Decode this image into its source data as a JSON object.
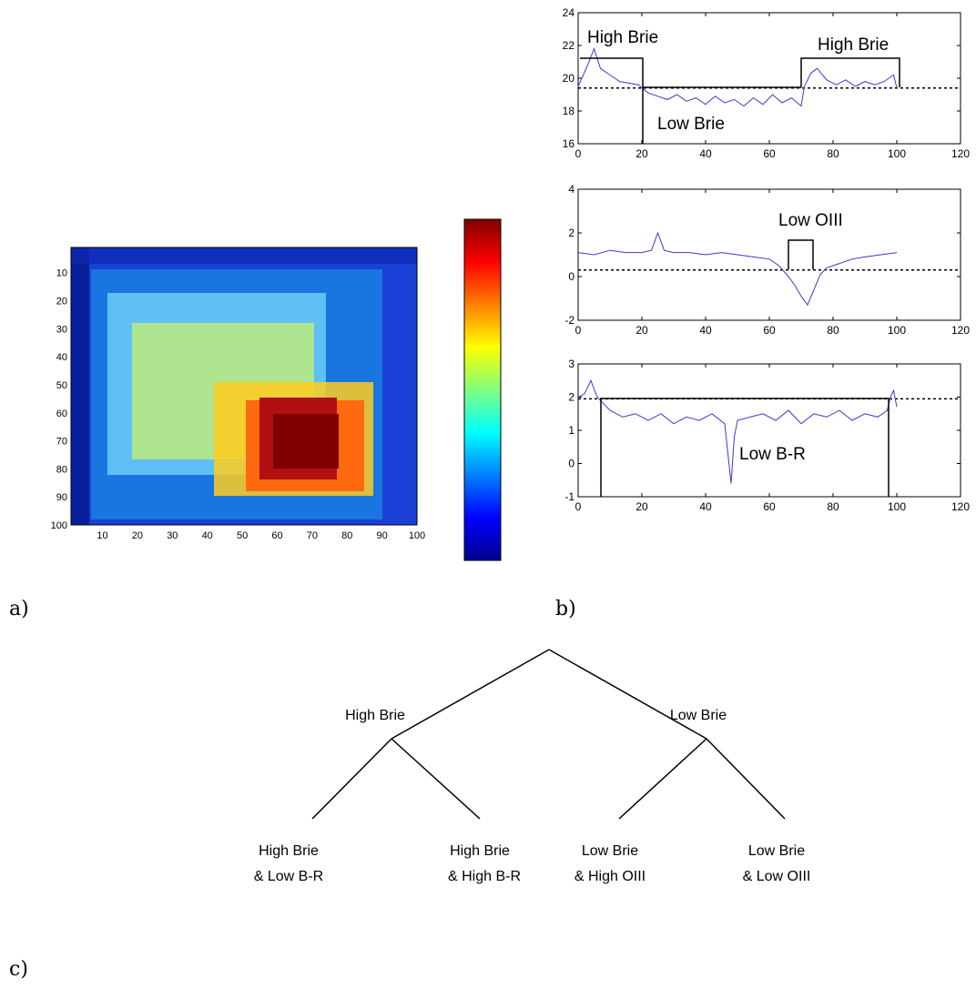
{
  "panel_labels": {
    "a": "a)",
    "b": "b)",
    "c": "c)"
  },
  "chart_data": [
    {
      "panel": "a",
      "type": "heatmap",
      "xticks": [
        10,
        20,
        30,
        40,
        50,
        60,
        70,
        80,
        90,
        100
      ],
      "yticks": [
        10,
        20,
        30,
        40,
        50,
        60,
        70,
        80,
        90,
        100
      ],
      "xlim": [
        1,
        100
      ],
      "ylim": [
        1,
        100
      ],
      "colormap": "jet",
      "colorbar": true,
      "description_blocks": {
        "background": "blue",
        "dark_red_block": [
          60,
          80
        ],
        "yellow_red_block": [
          20,
          90
        ]
      }
    },
    {
      "panel": "b1",
      "type": "line",
      "xticks": [
        0,
        20,
        40,
        60,
        80,
        100,
        120
      ],
      "yticks": [
        16,
        18,
        20,
        22,
        24
      ],
      "xlim": [
        0,
        120
      ],
      "ylim": [
        16,
        24
      ],
      "reference_line": 19.4,
      "annotations": [
        "High Brie",
        "Low Brie",
        "High Brie"
      ],
      "series": [
        {
          "x": [
            0,
            3,
            5,
            7,
            10,
            13,
            16,
            19,
            20,
            22,
            25,
            28,
            31,
            34,
            37,
            40,
            43,
            46,
            49,
            52,
            55,
            58,
            61,
            64,
            67,
            70,
            71,
            73,
            75,
            78,
            81,
            84,
            87,
            90,
            93,
            96,
            99,
            100
          ],
          "y": [
            19.5,
            20.8,
            21.8,
            20.6,
            20.2,
            19.8,
            19.7,
            19.6,
            19.4,
            19.1,
            18.9,
            18.7,
            19.0,
            18.6,
            18.8,
            18.4,
            18.9,
            18.5,
            18.7,
            18.3,
            18.8,
            18.4,
            19.0,
            18.5,
            18.8,
            18.3,
            19.5,
            20.3,
            20.6,
            19.9,
            19.6,
            19.9,
            19.5,
            19.8,
            19.6,
            19.8,
            20.2,
            19.4
          ]
        }
      ]
    },
    {
      "panel": "b2",
      "type": "line",
      "xticks": [
        0,
        20,
        40,
        60,
        80,
        100,
        120
      ],
      "yticks": [
        -2,
        0,
        2,
        4
      ],
      "xlim": [
        0,
        120
      ],
      "ylim": [
        -2,
        4
      ],
      "reference_line": 0.3,
      "annotations": [
        "Low OIII"
      ],
      "series": [
        {
          "x": [
            0,
            5,
            10,
            15,
            20,
            23,
            25,
            27,
            30,
            35,
            40,
            45,
            50,
            55,
            60,
            63,
            66,
            68,
            70,
            72,
            74,
            76,
            78,
            82,
            86,
            90,
            95,
            100
          ],
          "y": [
            1.1,
            1.0,
            1.2,
            1.1,
            1.1,
            1.2,
            2.0,
            1.2,
            1.1,
            1.1,
            1.0,
            1.1,
            1.0,
            0.9,
            0.8,
            0.5,
            0.0,
            -0.4,
            -0.9,
            -1.3,
            -0.6,
            0.1,
            0.4,
            0.6,
            0.8,
            0.9,
            1.0,
            1.1
          ]
        }
      ]
    },
    {
      "panel": "b3",
      "type": "line",
      "xticks": [
        0,
        20,
        40,
        60,
        80,
        100,
        120
      ],
      "yticks": [
        -1,
        0,
        1,
        2,
        3
      ],
      "xlim": [
        0,
        120
      ],
      "ylim": [
        -1,
        3
      ],
      "reference_line": 1.95,
      "annotations": [
        "Low B-R"
      ],
      "series": [
        {
          "x": [
            0,
            2,
            4,
            6,
            8,
            10,
            14,
            18,
            22,
            26,
            30,
            34,
            38,
            42,
            46,
            47,
            48,
            49,
            50,
            54,
            58,
            62,
            66,
            70,
            74,
            78,
            82,
            86,
            90,
            94,
            97,
            98,
            99,
            100
          ],
          "y": [
            2.0,
            2.1,
            2.5,
            2.0,
            1.8,
            1.6,
            1.4,
            1.5,
            1.3,
            1.5,
            1.2,
            1.4,
            1.3,
            1.5,
            1.2,
            0.3,
            -0.6,
            0.8,
            1.3,
            1.4,
            1.5,
            1.3,
            1.6,
            1.2,
            1.5,
            1.4,
            1.6,
            1.3,
            1.5,
            1.4,
            1.6,
            2.0,
            2.2,
            1.7
          ]
        }
      ]
    }
  ],
  "tree": {
    "root_left_label": "High Brie",
    "root_right_label": "Low Brie",
    "leaves": [
      {
        "line1": "High Brie",
        "line2": "& Low B-R"
      },
      {
        "line1": "High Brie",
        "line2": "& High B-R"
      },
      {
        "line1": "Low Brie",
        "line2": "& High OIII"
      },
      {
        "line1": "Low Brie",
        "line2": "& Low OIII"
      }
    ]
  },
  "colors": {
    "line": "#3a3ad0",
    "heat_low": "#00008f",
    "heat_high": "#800000"
  }
}
